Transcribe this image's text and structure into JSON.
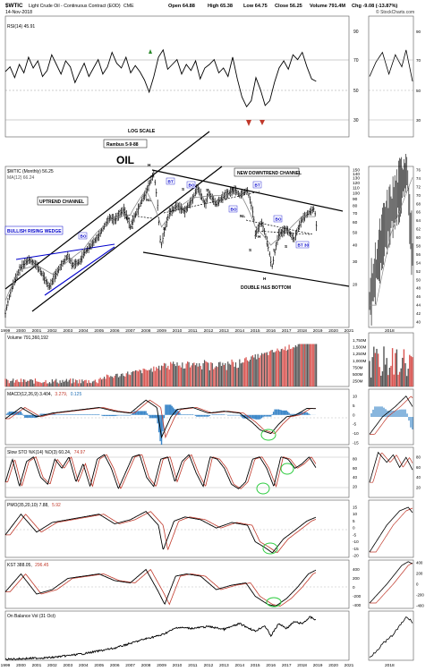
{
  "header": {
    "symbol": "$WTIC",
    "name": "Light Crude Oil - Continuous Contract (EOD)",
    "exchange": "CME",
    "date": "14-Nov-2018",
    "open": "Open 64.88",
    "high": "High 65.38",
    "low": "Low 64.75",
    "close": "Close 56.25",
    "volume": "Volume 791.4M",
    "change": "Chg -9.08 (-13.87%)",
    "watermark": "© StockCharts.com"
  },
  "rsi": {
    "legend": "RSI(14) 45.91",
    "ticks": [
      "90",
      "70",
      "50",
      "30"
    ],
    "values": [
      54,
      58,
      49,
      60,
      53,
      66,
      57,
      63,
      50,
      55,
      68,
      60,
      52,
      63,
      58,
      45,
      53,
      61,
      50,
      57,
      64,
      52,
      58,
      70,
      61,
      57,
      66,
      53,
      59,
      54,
      47,
      37,
      50,
      66,
      72,
      56,
      60,
      64,
      52,
      60,
      55,
      63,
      48,
      57,
      60,
      64,
      53,
      57,
      50,
      66,
      48,
      33,
      25,
      30,
      49,
      39,
      26,
      30,
      45,
      57,
      63,
      56,
      68,
      64,
      70,
      58,
      48,
      46
    ]
  },
  "annotations": {
    "log_scale": "LOG SCALE",
    "rambus": "Rambus 5-9-88",
    "oil": "OIL",
    "new_downtrend": "NEW DOWNTREND CHANNEL",
    "uptrend": "UPTREND CHANNEL",
    "bullish_wedge": "BULLISH RISING WEDGE",
    "double_hs": "DOUBLE H&S BOTTOM",
    "bo": "BO",
    "bt": "BT",
    "bt30": "BT 30",
    "h": "H",
    "s": "S",
    "nl": "NL"
  },
  "price": {
    "legend1": "$WTIC (Monthly) 56.25",
    "legend2": "MA(12) 66.24",
    "y_ticks": [
      "150",
      "140",
      "130",
      "120",
      "110",
      "100",
      "90",
      "80",
      "70",
      "60",
      "50",
      "40",
      "30",
      "20"
    ],
    "x_labels": [
      "1999",
      "2000",
      "2001",
      "2002",
      "2003",
      "2004",
      "2005",
      "2006",
      "2007",
      "2008",
      "2009",
      "2010",
      "2011",
      "2012",
      "2013",
      "2014",
      "2015",
      "2016",
      "2017",
      "2018",
      "2019",
      "2020",
      "2021"
    ]
  },
  "volume": {
    "legend": "Volume 791,360,192",
    "ticks": [
      "1,750M",
      "1,500M",
      "1,250M",
      "1,000M",
      "750M",
      "500M",
      "250M"
    ]
  },
  "macd": {
    "legend_a": "MACD(12,26,9) 3.404,",
    "legend_b": "3.279,",
    "legend_c": "0.125",
    "ticks": [
      "10",
      "5",
      "0",
      "-5",
      "-10",
      "-15"
    ]
  },
  "sto": {
    "legend_a": "Slow STO %K(14) %D(3) 60.24,",
    "legend_b": "74.97",
    "ticks": [
      "80",
      "60",
      "40",
      "20"
    ]
  },
  "pmo": {
    "legend_a": "PMO(35,20,10) 7.88,",
    "legend_b": "5.92",
    "ticks": [
      "15",
      "10",
      "5",
      "0",
      "-5",
      "-10",
      "-15",
      "-20"
    ]
  },
  "kst": {
    "legend_a": "KST 388.05,",
    "legend_b": "296.45",
    "ticks": [
      "400",
      "200",
      "0",
      "-200",
      "-400"
    ]
  },
  "obv": {
    "legend": "On Balance Vol (31 Oct)"
  },
  "inset": {
    "x_label": "2018",
    "price_ticks": [
      "76",
      "74",
      "72",
      "70",
      "68",
      "66",
      "64",
      "62",
      "60",
      "58",
      "56",
      "54",
      "52",
      "50",
      "48",
      "46",
      "44",
      "42",
      "40"
    ],
    "rsi_ticks": [
      "90",
      "70",
      "50",
      "30"
    ]
  },
  "chart_data": {
    "type": "line",
    "title": "$WTIC Light Crude Oil - Continuous Contract (EOD) CME",
    "x_range": [
      1999,
      2021
    ],
    "log_scale": true,
    "y_range": [
      10,
      150
    ],
    "series": [
      {
        "name": "$WTIC (Monthly)",
        "points": [
          [
            1999,
            12
          ],
          [
            1999.5,
            20
          ],
          [
            2000,
            27
          ],
          [
            2000.5,
            31
          ],
          [
            2001,
            28
          ],
          [
            2001.8,
            19
          ],
          [
            2002,
            21
          ],
          [
            2002.5,
            27
          ],
          [
            2003,
            33
          ],
          [
            2003.3,
            28
          ],
          [
            2003.8,
            30
          ],
          [
            2004,
            34
          ],
          [
            2004.5,
            40
          ],
          [
            2005,
            47
          ],
          [
            2005.7,
            65
          ],
          [
            2006,
            62
          ],
          [
            2006.6,
            75
          ],
          [
            2007,
            55
          ],
          [
            2007.5,
            75
          ],
          [
            2008,
            100
          ],
          [
            2008.5,
            140
          ],
          [
            2008.9,
            45
          ],
          [
            2009,
            40
          ],
          [
            2009.5,
            70
          ],
          [
            2010,
            80
          ],
          [
            2010.5,
            72
          ],
          [
            2011,
            90
          ],
          [
            2011.3,
            110
          ],
          [
            2011.8,
            80
          ],
          [
            2012,
            100
          ],
          [
            2012.5,
            82
          ],
          [
            2013,
            95
          ],
          [
            2013.7,
            106
          ],
          [
            2014,
            96
          ],
          [
            2014.5,
            105
          ],
          [
            2014.9,
            65
          ],
          [
            2015,
            48
          ],
          [
            2015.4,
            60
          ],
          [
            2015.8,
            40
          ],
          [
            2016,
            30
          ],
          [
            2016.1,
            27
          ],
          [
            2016.5,
            48
          ],
          [
            2017,
            53
          ],
          [
            2017.5,
            44
          ],
          [
            2018,
            63
          ],
          [
            2018.5,
            72
          ],
          [
            2018.8,
            76
          ],
          [
            2018.9,
            56
          ]
        ]
      },
      {
        "name": "MA(12)",
        "points": [
          [
            1999,
            15
          ],
          [
            2000,
            26
          ],
          [
            2001,
            28
          ],
          [
            2002,
            24
          ],
          [
            2003,
            30
          ],
          [
            2004,
            37
          ],
          [
            2005,
            52
          ],
          [
            2006,
            65
          ],
          [
            2007,
            68
          ],
          [
            2008,
            105
          ],
          [
            2009,
            55
          ],
          [
            2010,
            76
          ],
          [
            2011,
            92
          ],
          [
            2012,
            95
          ],
          [
            2013,
            96
          ],
          [
            2014,
            100
          ],
          [
            2015,
            55
          ],
          [
            2016,
            40
          ],
          [
            2017,
            50
          ],
          [
            2018,
            66
          ]
        ]
      }
    ],
    "ylabel": "",
    "xlabel": ""
  }
}
